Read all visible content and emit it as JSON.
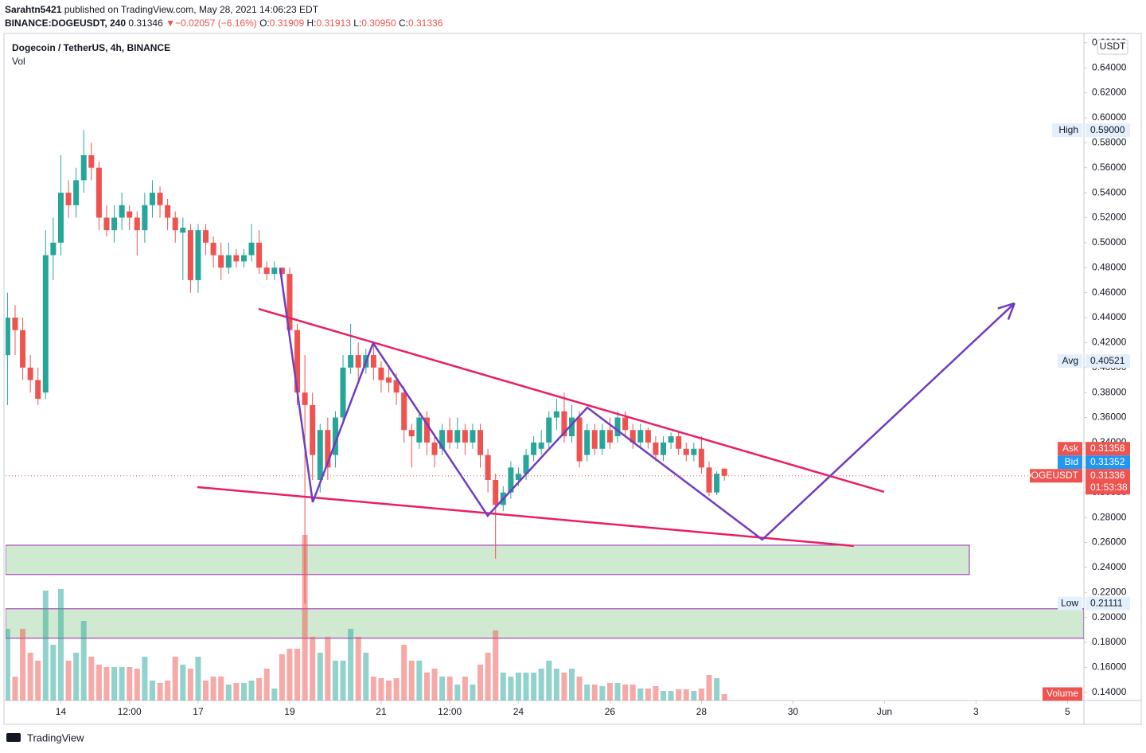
{
  "header": {
    "publisher": "Sarahtn5421",
    "published": "published on TradingView.com, May 28, 2021 14:06:23 EDT",
    "symbol": "BINANCE:DOGEUSDT, 240",
    "last": "0.31346",
    "arrow": "▼",
    "change": "−0.02057 (−6.16%)",
    "ohlc": [
      {
        "label": "O:",
        "value": "0.31909"
      },
      {
        "label": "H:",
        "value": "0.31913"
      },
      {
        "label": "L:",
        "value": "0.30950"
      },
      {
        "label": "C:",
        "value": "0.31336"
      }
    ]
  },
  "chart_data": {
    "type": "candlestick",
    "title": "Dogecoin / TetherUS, 4h, BINANCE",
    "volume_label": "Vol",
    "currency": "USDT",
    "up_color": "#26a69a",
    "down_color": "#ef5350",
    "x": [
      -28,
      -24,
      -20,
      -16,
      -12,
      -8,
      -4,
      0,
      4,
      8,
      12,
      16,
      20,
      24,
      28,
      32,
      36,
      40,
      44,
      48,
      52,
      56,
      60,
      64,
      68,
      72,
      76,
      80,
      84,
      88,
      92,
      96,
      100,
      104,
      108,
      112,
      116,
      120,
      124,
      128,
      132,
      136,
      140,
      144,
      148,
      152,
      156,
      160,
      164,
      168,
      172,
      176,
      180,
      184,
      188,
      192,
      196,
      200,
      204,
      208,
      212,
      216,
      220,
      224,
      228,
      232,
      236,
      240,
      244,
      248,
      252,
      256,
      260,
      264,
      268,
      272,
      276,
      280,
      284,
      288,
      292,
      296,
      300,
      304,
      308,
      312,
      316,
      320,
      324,
      328,
      332,
      336,
      340,
      344,
      348
    ],
    "open": [
      0.41,
      0.44,
      0.43,
      0.4,
      0.39,
      0.38,
      0.49,
      0.5,
      0.54,
      0.53,
      0.55,
      0.57,
      0.56,
      0.52,
      0.51,
      0.52,
      0.525,
      0.52,
      0.51,
      0.53,
      0.54,
      0.53,
      0.52,
      0.508,
      0.51,
      0.47,
      0.51,
      0.5,
      0.49,
      0.48,
      0.49,
      0.485,
      0.49,
      0.5,
      0.48,
      0.475,
      0.48,
      0.475,
      0.43,
      0.38,
      0.37,
      0.31,
      0.35,
      0.33,
      0.36,
      0.4,
      0.41,
      0.4,
      0.41,
      0.4,
      0.392,
      0.39,
      0.38,
      0.35,
      0.34,
      0.36,
      0.34,
      0.335,
      0.35,
      0.34,
      0.35,
      0.34,
      0.35,
      0.33,
      0.31,
      0.29,
      0.3,
      0.31,
      0.315,
      0.33,
      0.335,
      0.34,
      0.36,
      0.365,
      0.345,
      0.36,
      0.33,
      0.35,
      0.335,
      0.35,
      0.345,
      0.36,
      0.35,
      0.34,
      0.35,
      0.34,
      0.33,
      0.34,
      0.345,
      0.335,
      0.33,
      0.335,
      0.32,
      0.3,
      0.31909
    ],
    "high": [
      0.46,
      0.45,
      0.44,
      0.41,
      0.4,
      0.51,
      0.52,
      0.57,
      0.55,
      0.56,
      0.59,
      0.58,
      0.565,
      0.53,
      0.53,
      0.54,
      0.53,
      0.525,
      0.54,
      0.55,
      0.545,
      0.535,
      0.525,
      0.52,
      0.515,
      0.515,
      0.515,
      0.505,
      0.5,
      0.5,
      0.495,
      0.495,
      0.515,
      0.51,
      0.485,
      0.485,
      0.48,
      0.48,
      0.435,
      0.41,
      0.38,
      0.355,
      0.36,
      0.365,
      0.41,
      0.435,
      0.42,
      0.415,
      0.42,
      0.405,
      0.4,
      0.395,
      0.385,
      0.355,
      0.365,
      0.365,
      0.345,
      0.355,
      0.36,
      0.36,
      0.355,
      0.355,
      0.355,
      0.335,
      0.315,
      0.305,
      0.325,
      0.32,
      0.335,
      0.345,
      0.35,
      0.365,
      0.375,
      0.38,
      0.37,
      0.365,
      0.355,
      0.355,
      0.355,
      0.36,
      0.365,
      0.365,
      0.355,
      0.355,
      0.352,
      0.345,
      0.345,
      0.348,
      0.348,
      0.34,
      0.34,
      0.345,
      0.325,
      0.317,
      0.31913
    ],
    "low": [
      0.37,
      0.41,
      0.39,
      0.38,
      0.37,
      0.375,
      0.47,
      0.49,
      0.52,
      0.52,
      0.54,
      0.55,
      0.51,
      0.505,
      0.5,
      0.51,
      0.51,
      0.49,
      0.5,
      0.52,
      0.52,
      0.51,
      0.5,
      0.47,
      0.46,
      0.46,
      0.49,
      0.48,
      0.47,
      0.475,
      0.48,
      0.48,
      0.485,
      0.475,
      0.47,
      0.47,
      0.465,
      0.42,
      0.37,
      0.21111,
      0.31,
      0.3,
      0.31,
      0.32,
      0.355,
      0.395,
      0.39,
      0.395,
      0.39,
      0.38,
      0.38,
      0.37,
      0.34,
      0.32,
      0.335,
      0.33,
      0.32,
      0.33,
      0.335,
      0.335,
      0.33,
      0.335,
      0.32,
      0.3,
      0.247,
      0.285,
      0.295,
      0.305,
      0.31,
      0.325,
      0.33,
      0.335,
      0.35,
      0.34,
      0.34,
      0.32,
      0.325,
      0.33,
      0.33,
      0.335,
      0.34,
      0.345,
      0.335,
      0.335,
      0.335,
      0.325,
      0.325,
      0.335,
      0.33,
      0.325,
      0.325,
      0.315,
      0.297,
      0.298,
      0.3095
    ],
    "close": [
      0.44,
      0.43,
      0.4,
      0.39,
      0.375,
      0.49,
      0.5,
      0.54,
      0.53,
      0.55,
      0.57,
      0.56,
      0.52,
      0.51,
      0.52,
      0.53,
      0.52,
      0.51,
      0.53,
      0.54,
      0.53,
      0.52,
      0.51,
      0.512,
      0.47,
      0.51,
      0.5,
      0.49,
      0.48,
      0.49,
      0.485,
      0.49,
      0.5,
      0.48,
      0.475,
      0.48,
      0.475,
      0.43,
      0.38,
      0.37,
      0.33,
      0.35,
      0.32,
      0.36,
      0.4,
      0.41,
      0.4,
      0.41,
      0.4,
      0.39,
      0.388,
      0.38,
      0.35,
      0.345,
      0.36,
      0.34,
      0.33,
      0.35,
      0.34,
      0.35,
      0.34,
      0.35,
      0.33,
      0.31,
      0.29,
      0.3,
      0.32,
      0.315,
      0.33,
      0.34,
      0.34,
      0.36,
      0.365,
      0.345,
      0.36,
      0.325,
      0.35,
      0.335,
      0.35,
      0.34,
      0.36,
      0.35,
      0.34,
      0.35,
      0.34,
      0.33,
      0.34,
      0.345,
      0.335,
      0.33,
      0.335,
      0.32,
      0.3,
      0.315,
      0.31336
    ],
    "volume": [
      90,
      30,
      90,
      60,
      50,
      138,
      70,
      140,
      50,
      60,
      100,
      55,
      45,
      42,
      42,
      42,
      42,
      40,
      55,
      25,
      22,
      25,
      55,
      45,
      40,
      55,
      25,
      30,
      30,
      20,
      22,
      22,
      25,
      28,
      40,
      15,
      58,
      65,
      65,
      208,
      80,
      60,
      80,
      50,
      50,
      90,
      80,
      60,
      30,
      28,
      25,
      28,
      70,
      50,
      50,
      35,
      40,
      30,
      30,
      20,
      30,
      20,
      45,
      60,
      88,
      35,
      30,
      35,
      35,
      35,
      40,
      50,
      40,
      35,
      40,
      30,
      20,
      20,
      18,
      22,
      22,
      20,
      20,
      15,
      15,
      18,
      12,
      12,
      14,
      14,
      12,
      15,
      32,
      28,
      8
    ],
    "xlim": [
      -29,
      536.6
    ],
    "ylim": [
      0.1335,
      0.6675
    ],
    "vlim": [
      0,
      250
    ],
    "xticks": [
      {
        "value": 0,
        "label": "14"
      },
      {
        "value": 36,
        "label": "12:00"
      },
      {
        "value": 72,
        "label": "17"
      },
      {
        "value": 120,
        "label": "19"
      },
      {
        "value": 168,
        "label": "21"
      },
      {
        "value": 204,
        "label": "12:00"
      },
      {
        "value": 240,
        "label": "24"
      },
      {
        "value": 288,
        "label": "26"
      },
      {
        "value": 336,
        "label": "28"
      },
      {
        "value": 384,
        "label": "30"
      },
      {
        "value": 432,
        "label": "Jun"
      },
      {
        "value": 480,
        "label": "3"
      },
      {
        "value": 528,
        "label": "5"
      }
    ],
    "yticks": [
      {
        "value": 0.14,
        "label": "0.14000"
      },
      {
        "value": 0.16,
        "label": "0.16000"
      },
      {
        "value": 0.18,
        "label": "0.18000"
      },
      {
        "value": 0.2,
        "label": "0.20000"
      },
      {
        "value": 0.22,
        "label": "0.22000"
      },
      {
        "value": 0.24,
        "label": "0.24000"
      },
      {
        "value": 0.26,
        "label": "0.26000"
      },
      {
        "value": 0.28,
        "label": "0.28000"
      },
      {
        "value": 0.3,
        "label": "0.30000"
      },
      {
        "value": 0.32,
        "label": "0.32000"
      },
      {
        "value": 0.34,
        "label": "0.34000"
      },
      {
        "value": 0.36,
        "label": "0.36000"
      },
      {
        "value": 0.38,
        "label": "0.38000"
      },
      {
        "value": 0.4,
        "label": "0.40000"
      },
      {
        "value": 0.42,
        "label": "0.42000"
      },
      {
        "value": 0.44,
        "label": "0.44000"
      },
      {
        "value": 0.46,
        "label": "0.46000"
      },
      {
        "value": 0.48,
        "label": "0.48000"
      },
      {
        "value": 0.5,
        "label": "0.50000"
      },
      {
        "value": 0.52,
        "label": "0.52000"
      },
      {
        "value": 0.54,
        "label": "0.54000"
      },
      {
        "value": 0.56,
        "label": "0.56000"
      },
      {
        "value": 0.58,
        "label": "0.58000"
      },
      {
        "value": 0.6,
        "label": "0.60000"
      },
      {
        "value": 0.62,
        "label": "0.62000"
      },
      {
        "value": 0.64,
        "label": "0.64000"
      },
      {
        "value": 0.66,
        "label": "0.66000"
      }
    ],
    "grid": false,
    "zones": [
      {
        "x": [
          -29,
          476.5
        ],
        "y": [
          0.2578,
          0.2343
        ],
        "fill": "#c8e6c9",
        "stroke": "#9c27b0"
      },
      {
        "x": [
          -29,
          536.6
        ],
        "y": [
          0.2069,
          0.1833
        ],
        "fill": "#c8e6c9",
        "stroke": "#9c27b0"
      }
    ],
    "trend_lines": [
      {
        "color": "#e91e63",
        "x": [
          103.7,
          431.8
        ],
        "y": [
          0.447,
          0.3005
        ]
      },
      {
        "color": "#e91e63",
        "x": [
          71.6,
          415.9
        ],
        "y": [
          0.3043,
          0.2572
        ]
      }
    ],
    "pattern": {
      "color": "#6f3cc3",
      "x": [
        115,
        132.1,
        163.8,
        223.9,
        276.1,
        367.9,
        500.2
      ],
      "y": [
        0.4795,
        0.2922,
        0.4196,
        0.2814,
        0.368,
        0.2623,
        0.4515
      ]
    },
    "price_tags": [
      {
        "label": "High",
        "value": 0.59,
        "value_label": "0.59000",
        "color": "#e3effd",
        "text_color": "#131722"
      },
      {
        "label": "Avg",
        "value": 0.40521,
        "value_label": "0.40521",
        "color": "#e3effd",
        "text_color": "#131722"
      },
      {
        "label": "Ask",
        "value": 0.31358,
        "value_label": "0.31358",
        "color": "#ef5350",
        "text_color": "#ffffff"
      },
      {
        "label": "Bid",
        "value": 0.31352,
        "value_label": "0.31352",
        "color": "#2196f3",
        "text_color": "#ffffff"
      },
      {
        "label": "DOGEUSDT",
        "value": 0.31336,
        "value_label": "0.31336",
        "color": "#ef5350",
        "text_color": "#ffffff"
      },
      {
        "label": "Low",
        "value": 0.21111,
        "value_label": "0.21111",
        "color": "#e3effd",
        "text_color": "#131722"
      }
    ],
    "countdown": "01:53:38",
    "volume_tag": "Volume"
  },
  "footer": {
    "brand": "TradingView"
  }
}
